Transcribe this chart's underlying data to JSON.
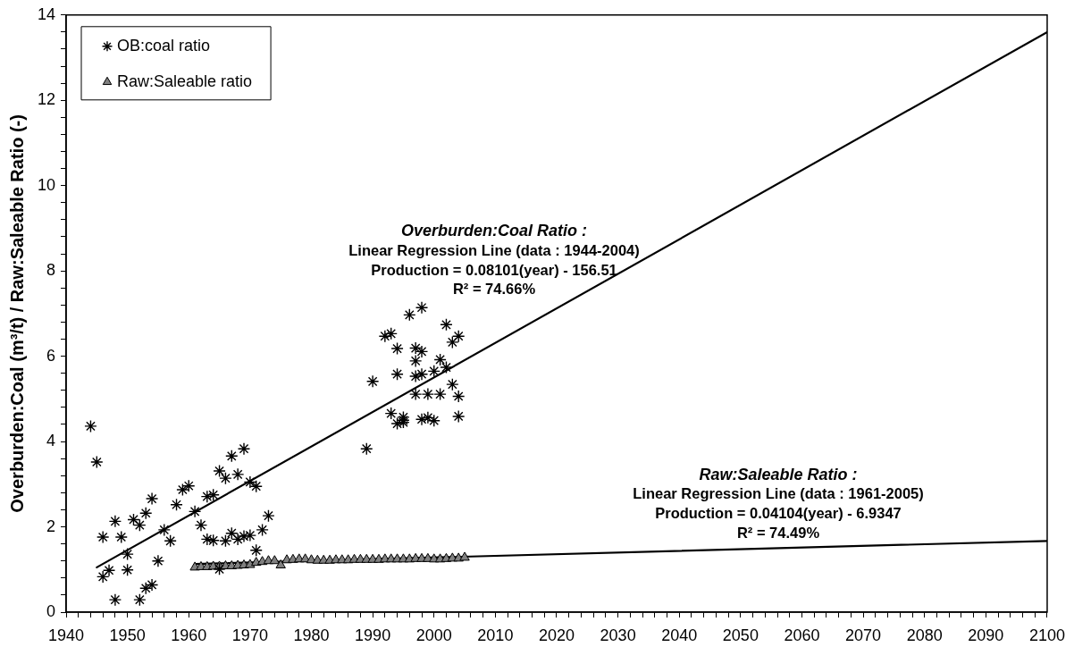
{
  "chart_data": {
    "type": "scatter",
    "ylabel": "Overburden:Coal (m³/t) / Raw:Saleable Ratio (-)",
    "legend": "top left",
    "xlim": [
      1940,
      2100
    ],
    "xticks": [
      1940,
      {
        "value": 1942,
        "label": null
      },
      {
        "value": 1944,
        "label": null
      },
      {
        "value": 1946,
        "label": null
      },
      {
        "value": 1948,
        "label": null
      },
      1950,
      {
        "value": 1952,
        "label": null
      },
      {
        "value": 1954,
        "label": null
      },
      {
        "value": 1956,
        "label": null
      },
      {
        "value": 1958,
        "label": null
      },
      1960,
      {
        "value": 1962,
        "label": null
      },
      {
        "value": 1964,
        "label": null
      },
      {
        "value": 1966,
        "label": null
      },
      {
        "value": 1968,
        "label": null
      },
      1970,
      {
        "value": 1972,
        "label": null
      },
      {
        "value": 1974,
        "label": null
      },
      {
        "value": 1976,
        "label": null
      },
      {
        "value": 1978,
        "label": null
      },
      1980,
      {
        "value": 1982,
        "label": null
      },
      {
        "value": 1984,
        "label": null
      },
      {
        "value": 1986,
        "label": null
      },
      {
        "value": 1988,
        "label": null
      },
      1990,
      {
        "value": 1992,
        "label": null
      },
      {
        "value": 1994,
        "label": null
      },
      {
        "value": 1996,
        "label": null
      },
      {
        "value": 1998,
        "label": null
      },
      2000,
      {
        "value": 2002,
        "label": null
      },
      {
        "value": 2004,
        "label": null
      },
      {
        "value": 2006,
        "label": null
      },
      {
        "value": 2008,
        "label": null
      },
      2010,
      {
        "value": 2012,
        "label": null
      },
      {
        "value": 2014,
        "label": null
      },
      {
        "value": 2016,
        "label": null
      },
      {
        "value": 2018,
        "label": null
      },
      2020,
      {
        "value": 2022,
        "label": null
      },
      {
        "value": 2024,
        "label": null
      },
      {
        "value": 2026,
        "label": null
      },
      {
        "value": 2028,
        "label": null
      },
      2030,
      {
        "value": 2032,
        "label": null
      },
      {
        "value": 2034,
        "label": null
      },
      {
        "value": 2036,
        "label": null
      },
      {
        "value": 2038,
        "label": null
      },
      2040,
      {
        "value": 2042,
        "label": null
      },
      {
        "value": 2044,
        "label": null
      },
      {
        "value": 2046,
        "label": null
      },
      {
        "value": 2048,
        "label": null
      },
      2050,
      {
        "value": 2052,
        "label": null
      },
      {
        "value": 2054,
        "label": null
      },
      {
        "value": 2056,
        "label": null
      },
      {
        "value": 2058,
        "label": null
      },
      2060,
      {
        "value": 2062,
        "label": null
      },
      {
        "value": 2064,
        "label": null
      },
      {
        "value": 2066,
        "label": null
      },
      {
        "value": 2068,
        "label": null
      },
      2070,
      {
        "value": 2072,
        "label": null
      },
      {
        "value": 2074,
        "label": null
      },
      {
        "value": 2076,
        "label": null
      },
      {
        "value": 2078,
        "label": null
      },
      2080,
      {
        "value": 2082,
        "label": null
      },
      {
        "value": 2084,
        "label": null
      },
      {
        "value": 2086,
        "label": null
      },
      {
        "value": 2088,
        "label": null
      },
      2090,
      {
        "value": 2092,
        "label": null
      },
      {
        "value": 2094,
        "label": null
      },
      {
        "value": 2096,
        "label": null
      },
      {
        "value": 2098,
        "label": null
      },
      2100
    ],
    "ylim": [
      0,
      14
    ],
    "yticks": [
      0,
      {
        "value": 0.4,
        "label": null
      },
      {
        "value": 0.8,
        "label": null
      },
      {
        "value": 1.2,
        "label": null
      },
      {
        "value": 1.6,
        "label": null
      },
      2,
      {
        "value": 2.4,
        "label": null
      },
      {
        "value": 2.8,
        "label": null
      },
      {
        "value": 3.2,
        "label": null
      },
      {
        "value": 3.6,
        "label": null
      },
      4,
      {
        "value": 4.4,
        "label": null
      },
      {
        "value": 4.8,
        "label": null
      },
      {
        "value": 5.2,
        "label": null
      },
      {
        "value": 5.6,
        "label": null
      },
      6,
      {
        "value": 6.4,
        "label": null
      },
      {
        "value": 6.8,
        "label": null
      },
      {
        "value": 7.2,
        "label": null
      },
      {
        "value": 7.6,
        "label": null
      },
      8,
      {
        "value": 8.4,
        "label": null
      },
      {
        "value": 8.8,
        "label": null
      },
      {
        "value": 9.2,
        "label": null
      },
      {
        "value": 9.6,
        "label": null
      },
      10,
      {
        "value": 10.4,
        "label": null
      },
      {
        "value": 10.8,
        "label": null
      },
      {
        "value": 11.2,
        "label": null
      },
      {
        "value": 11.6,
        "label": null
      },
      12,
      {
        "value": 12.4,
        "label": null
      },
      {
        "value": 12.8,
        "label": null
      },
      {
        "value": 13.2,
        "label": null
      },
      {
        "value": 13.6,
        "label": null
      },
      14
    ],
    "series": [
      {
        "name": "OB:coal ratio",
        "marker": "cross",
        "color": "#000000",
        "x": [
          1944,
          1945,
          1946,
          1946,
          1947,
          1948,
          1948,
          1949,
          1950,
          1950,
          1951,
          1952,
          1952,
          1953,
          1953,
          1954,
          1954,
          1955,
          1956,
          1957,
          1958,
          1959,
          1960,
          1961,
          1962,
          1963,
          1963,
          1964,
          1964,
          1965,
          1965,
          1966,
          1966,
          1967,
          1967,
          1968,
          1968,
          1969,
          1969,
          1970,
          1970,
          1971,
          1971,
          1972,
          1973,
          1989,
          1990,
          1992,
          1993,
          1993,
          1994,
          1994,
          1994,
          1995,
          1995,
          1995,
          1996,
          1997,
          1997,
          1997,
          1997,
          1998,
          1998,
          1998,
          1998,
          1999,
          1999,
          2000,
          2000,
          2001,
          2001,
          2002,
          2002,
          2003,
          2003,
          2004,
          2004,
          2004
        ],
        "values": [
          4.36,
          3.52,
          1.76,
          0.83,
          0.98,
          2.13,
          0.29,
          1.76,
          1.36,
          0.99,
          2.17,
          2.04,
          0.29,
          2.32,
          0.56,
          2.66,
          0.64,
          1.2,
          1.93,
          1.67,
          2.52,
          2.87,
          2.96,
          2.36,
          2.04,
          2.71,
          1.71,
          2.75,
          1.68,
          3.31,
          1.01,
          3.14,
          1.67,
          3.66,
          1.85,
          3.23,
          1.71,
          3.83,
          1.78,
          3.05,
          1.8,
          2.95,
          1.45,
          1.93,
          2.26,
          3.83,
          5.41,
          6.47,
          6.53,
          4.66,
          6.18,
          5.58,
          4.42,
          4.57,
          4.45,
          4.5,
          6.97,
          6.19,
          5.89,
          5.53,
          5.11,
          7.14,
          6.11,
          5.58,
          4.52,
          5.11,
          4.56,
          5.65,
          4.49,
          5.92,
          5.11,
          6.74,
          5.74,
          6.33,
          5.34,
          6.47,
          5.06,
          4.59
        ]
      },
      {
        "name": "Raw:Saleable ratio",
        "marker": "triangle",
        "color": "#808080",
        "x": [
          1961,
          1962,
          1963,
          1964,
          1965,
          1966,
          1967,
          1968,
          1969,
          1970,
          1971,
          1972,
          1973,
          1974,
          1975,
          1976,
          1977,
          1978,
          1979,
          1980,
          1981,
          1982,
          1983,
          1984,
          1985,
          1986,
          1987,
          1988,
          1989,
          1990,
          1991,
          1992,
          1993,
          1994,
          1995,
          1996,
          1997,
          1998,
          1999,
          2000,
          2001,
          2002,
          2003,
          2004,
          2005
        ],
        "values": [
          1.05,
          1.06,
          1.06,
          1.07,
          1.07,
          1.08,
          1.08,
          1.09,
          1.1,
          1.11,
          1.16,
          1.18,
          1.2,
          1.2,
          1.1,
          1.22,
          1.23,
          1.24,
          1.24,
          1.22,
          1.21,
          1.21,
          1.21,
          1.22,
          1.22,
          1.22,
          1.23,
          1.23,
          1.23,
          1.23,
          1.23,
          1.24,
          1.24,
          1.24,
          1.24,
          1.24,
          1.25,
          1.25,
          1.25,
          1.24,
          1.24,
          1.25,
          1.26,
          1.26,
          1.28
        ]
      },
      {
        "type": "line",
        "marker": "none",
        "color": "#000000",
        "x": [
          1945,
          2100
        ],
        "values": [
          1.05,
          13.6
        ]
      },
      {
        "type": "line",
        "marker": "none",
        "color": "#000000",
        "x": [
          1961,
          2100
        ],
        "values": [
          1.13,
          1.67
        ]
      }
    ],
    "annotations": [
      "Overburden:Coal Ratio :",
      "Linear Regression Line (data : 1944-2004)",
      "Production = 0.08101(year) - 156.51",
      "R² = 74.66%",
      "Raw:Saleable Ratio :",
      "Linear Regression Line (data : 1961-2005)",
      "Production = 0.04104(year) - 6.9347",
      "R² = 74.49%"
    ]
  }
}
